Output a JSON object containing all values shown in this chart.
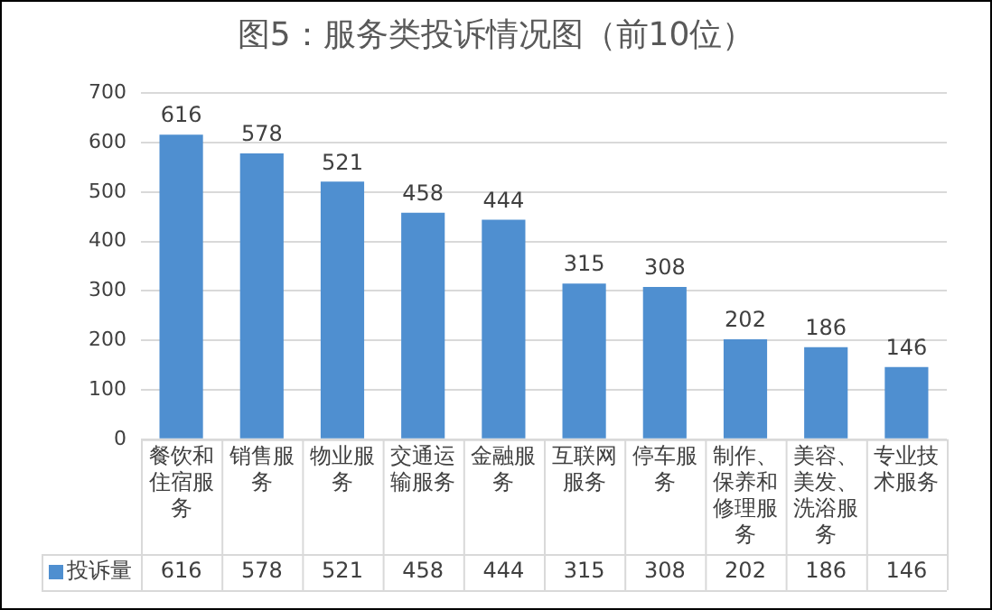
{
  "chart_data": {
    "type": "bar",
    "title": "图5：服务类投诉情况图（前10位）",
    "categories": [
      "餐饮和住宿服务",
      "销售服务",
      "物业服务",
      "交通运输服务",
      "金融服务",
      "互联网服务",
      "停车服务",
      "制作、保养和修理服务",
      "美容、美发、洗浴服务",
      "专业技术服务"
    ],
    "series": [
      {
        "name": "投诉量",
        "color": "#4f8fd0",
        "values": [
          616,
          578,
          521,
          458,
          444,
          315,
          308,
          202,
          186,
          146
        ],
        "value_labels": [
          "616",
          "578",
          "521",
          "458",
          "444",
          "315",
          "308",
          "202",
          "186",
          "146"
        ]
      }
    ],
    "annotations": [
      "616",
      "578",
      "521",
      "458",
      "444",
      "315",
      "308",
      "202",
      "186",
      "146"
    ],
    "ylim": [
      0,
      700
    ],
    "yticks": [
      0,
      100,
      200,
      300,
      400,
      500,
      600,
      700
    ],
    "grid": "y",
    "legend": "bottom",
    "data_labels": true
  }
}
